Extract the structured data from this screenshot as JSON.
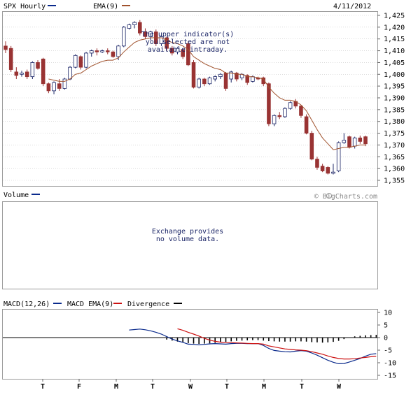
{
  "price_panel": {
    "symbol_label": "SPX Hourly",
    "ema_label": "EMA(9)",
    "date": "4/11/2012",
    "watermark": "© BigCharts.com",
    "notice_lines": [
      "The upper indicator(s)",
      "you selected are not",
      "available intraday."
    ]
  },
  "volume_panel": {
    "label": "Volume",
    "message_lines": [
      "Exchange provides",
      "no volume data."
    ]
  },
  "macd_panel": {
    "macd_label": "MACD(12,26)",
    "signal_label": "MACD EMA(9)",
    "divergence_label": "Divergence"
  },
  "colors": {
    "up_candle": "#ffffff",
    "down_candle": "#993333",
    "candle_outline": "#1a2466",
    "ema": "#a0522d",
    "macd": "#0a2a8c",
    "macd_ema": "#cc1111",
    "divergence": "#000000",
    "grid": "#c8c8c8"
  },
  "chart_data": [
    {
      "type": "candlestick",
      "title": "SPX Hourly",
      "ylim": [
        1355,
        1425
      ],
      "y_ticks": [
        1355,
        1360,
        1365,
        1370,
        1375,
        1380,
        1385,
        1390,
        1395,
        1400,
        1405,
        1410,
        1415,
        1420,
        1425
      ],
      "grid": true,
      "candles": [
        {
          "o": 1412.0,
          "h": 1414.0,
          "l": 1409.0,
          "c": 1410.5
        },
        {
          "o": 1411.0,
          "h": 1412.0,
          "l": 1401.0,
          "c": 1402.0
        },
        {
          "o": 1401.0,
          "h": 1403.0,
          "l": 1398.0,
          "c": 1399.5
        },
        {
          "o": 1400.0,
          "h": 1401.5,
          "l": 1399.0,
          "c": 1400.5
        },
        {
          "o": 1401.0,
          "h": 1402.0,
          "l": 1398.0,
          "c": 1399.0
        },
        {
          "o": 1399.0,
          "h": 1405.5,
          "l": 1398.0,
          "c": 1405.0
        },
        {
          "o": 1405.0,
          "h": 1406.0,
          "l": 1402.0,
          "c": 1402.5
        },
        {
          "o": 1406.5,
          "h": 1407.0,
          "l": 1395.0,
          "c": 1396.0
        },
        {
          "o": 1396.0,
          "h": 1396.5,
          "l": 1392.0,
          "c": 1393.0
        },
        {
          "o": 1393.0,
          "h": 1397.0,
          "l": 1391.5,
          "c": 1396.5
        },
        {
          "o": 1396.0,
          "h": 1398.0,
          "l": 1393.0,
          "c": 1394.0
        },
        {
          "o": 1394.0,
          "h": 1398.5,
          "l": 1393.5,
          "c": 1398.0
        },
        {
          "o": 1398.0,
          "h": 1403.5,
          "l": 1397.5,
          "c": 1403.0
        },
        {
          "o": 1403.0,
          "h": 1408.5,
          "l": 1402.5,
          "c": 1408.0
        },
        {
          "o": 1407.5,
          "h": 1408.0,
          "l": 1402.0,
          "c": 1403.0
        },
        {
          "o": 1403.0,
          "h": 1409.5,
          "l": 1402.5,
          "c": 1409.0
        },
        {
          "o": 1409.0,
          "h": 1410.5,
          "l": 1407.5,
          "c": 1410.0
        },
        {
          "o": 1410.0,
          "h": 1411.0,
          "l": 1408.0,
          "c": 1409.5
        },
        {
          "o": 1409.5,
          "h": 1410.5,
          "l": 1409.0,
          "c": 1410.0
        },
        {
          "o": 1410.0,
          "h": 1411.0,
          "l": 1408.5,
          "c": 1409.5
        },
        {
          "o": 1409.5,
          "h": 1410.0,
          "l": 1407.0,
          "c": 1407.5
        },
        {
          "o": 1407.5,
          "h": 1412.5,
          "l": 1406.0,
          "c": 1412.0
        },
        {
          "o": 1412.0,
          "h": 1420.5,
          "l": 1411.5,
          "c": 1420.0
        },
        {
          "o": 1419.5,
          "h": 1421.5,
          "l": 1419.0,
          "c": 1421.0
        },
        {
          "o": 1421.0,
          "h": 1422.5,
          "l": 1419.5,
          "c": 1422.0
        },
        {
          "o": 1422.0,
          "h": 1423.0,
          "l": 1416.5,
          "c": 1417.5
        },
        {
          "o": 1418.0,
          "h": 1419.5,
          "l": 1415.0,
          "c": 1416.0
        },
        {
          "o": 1416.0,
          "h": 1418.5,
          "l": 1414.5,
          "c": 1418.0
        },
        {
          "o": 1418.0,
          "h": 1419.0,
          "l": 1412.0,
          "c": 1413.0
        },
        {
          "o": 1413.0,
          "h": 1416.5,
          "l": 1412.0,
          "c": 1416.0
        },
        {
          "o": 1415.5,
          "h": 1416.0,
          "l": 1410.0,
          "c": 1411.0
        },
        {
          "o": 1411.0,
          "h": 1412.0,
          "l": 1408.0,
          "c": 1409.0
        },
        {
          "o": 1409.5,
          "h": 1411.5,
          "l": 1408.5,
          "c": 1411.0
        },
        {
          "o": 1410.5,
          "h": 1411.0,
          "l": 1406.5,
          "c": 1407.5
        },
        {
          "o": 1413.0,
          "h": 1414.0,
          "l": 1403.5,
          "c": 1404.0
        },
        {
          "o": 1405.0,
          "h": 1406.0,
          "l": 1394.0,
          "c": 1394.5
        },
        {
          "o": 1394.5,
          "h": 1398.5,
          "l": 1394.0,
          "c": 1398.0
        },
        {
          "o": 1398.0,
          "h": 1398.5,
          "l": 1395.0,
          "c": 1396.0
        },
        {
          "o": 1396.0,
          "h": 1399.0,
          "l": 1395.5,
          "c": 1398.5
        },
        {
          "o": 1398.0,
          "h": 1399.5,
          "l": 1397.0,
          "c": 1399.0
        },
        {
          "o": 1399.0,
          "h": 1400.5,
          "l": 1398.0,
          "c": 1400.0
        },
        {
          "o": 1400.5,
          "h": 1401.0,
          "l": 1393.0,
          "c": 1394.0
        },
        {
          "o": 1398.0,
          "h": 1401.5,
          "l": 1396.5,
          "c": 1401.0
        },
        {
          "o": 1400.5,
          "h": 1401.0,
          "l": 1397.0,
          "c": 1398.0
        },
        {
          "o": 1398.5,
          "h": 1400.5,
          "l": 1397.5,
          "c": 1400.0
        },
        {
          "o": 1399.5,
          "h": 1400.0,
          "l": 1395.5,
          "c": 1396.5
        },
        {
          "o": 1397.0,
          "h": 1399.5,
          "l": 1396.5,
          "c": 1399.0
        },
        {
          "o": 1398.5,
          "h": 1399.0,
          "l": 1397.5,
          "c": 1398.0
        },
        {
          "o": 1398.5,
          "h": 1399.0,
          "l": 1395.0,
          "c": 1396.0
        },
        {
          "o": 1396.0,
          "h": 1396.5,
          "l": 1378.0,
          "c": 1379.0
        },
        {
          "o": 1379.0,
          "h": 1383.0,
          "l": 1378.0,
          "c": 1382.5
        },
        {
          "o": 1382.5,
          "h": 1384.0,
          "l": 1381.0,
          "c": 1382.0
        },
        {
          "o": 1382.0,
          "h": 1386.0,
          "l": 1381.5,
          "c": 1385.5
        },
        {
          "o": 1385.5,
          "h": 1388.5,
          "l": 1385.0,
          "c": 1388.0
        },
        {
          "o": 1388.5,
          "h": 1389.5,
          "l": 1385.5,
          "c": 1386.5
        },
        {
          "o": 1386.5,
          "h": 1387.0,
          "l": 1381.5,
          "c": 1382.5
        },
        {
          "o": 1382.0,
          "h": 1383.0,
          "l": 1374.5,
          "c": 1375.0
        },
        {
          "o": 1375.0,
          "h": 1376.0,
          "l": 1363.5,
          "c": 1364.0
        },
        {
          "o": 1364.0,
          "h": 1365.0,
          "l": 1359.5,
          "c": 1360.5
        },
        {
          "o": 1361.0,
          "h": 1362.0,
          "l": 1358.5,
          "c": 1359.0
        },
        {
          "o": 1360.5,
          "h": 1361.0,
          "l": 1357.5,
          "c": 1358.0
        },
        {
          "o": 1358.0,
          "h": 1362.0,
          "l": 1357.5,
          "c": 1358.5
        },
        {
          "o": 1359.0,
          "h": 1371.5,
          "l": 1358.5,
          "c": 1371.0
        },
        {
          "o": 1371.0,
          "h": 1375.0,
          "l": 1370.5,
          "c": 1372.0
        },
        {
          "o": 1373.5,
          "h": 1374.0,
          "l": 1368.5,
          "c": 1369.0
        },
        {
          "o": 1369.5,
          "h": 1373.5,
          "l": 1368.5,
          "c": 1373.0
        },
        {
          "o": 1373.0,
          "h": 1374.0,
          "l": 1370.5,
          "c": 1371.5
        },
        {
          "o": 1373.5,
          "h": 1374.0,
          "l": 1369.5,
          "c": 1370.5
        }
      ],
      "series": [
        {
          "name": "EMA(9)",
          "values": [
            null,
            null,
            null,
            null,
            null,
            null,
            null,
            null,
            1398.0,
            1397.5,
            1397.0,
            1397.0,
            1398.0,
            1400.0,
            1400.5,
            1402.0,
            1403.5,
            1404.5,
            1405.5,
            1406.0,
            1406.0,
            1407.0,
            1409.5,
            1411.5,
            1413.5,
            1414.5,
            1415.0,
            1415.5,
            1415.5,
            1415.5,
            1414.5,
            1413.5,
            1413.0,
            1412.0,
            1410.5,
            1407.5,
            1406.0,
            1404.5,
            1403.5,
            1402.5,
            1402.0,
            1400.5,
            1400.5,
            1400.0,
            1400.0,
            1399.0,
            1399.0,
            1398.5,
            1398.0,
            1394.5,
            1392.0,
            1390.0,
            1389.0,
            1389.0,
            1388.5,
            1387.0,
            1384.5,
            1380.5,
            1376.5,
            1373.0,
            1370.5,
            1368.0,
            1368.5,
            1369.0,
            1369.0,
            1369.5,
            1370.0,
            1370.0
          ]
        }
      ]
    },
    {
      "type": "macd",
      "ylim": [
        -15,
        10
      ],
      "y_ticks": [
        10,
        5,
        0,
        -5,
        -10,
        -15
      ],
      "series": [
        {
          "name": "MACD(12,26)",
          "values": [
            null,
            null,
            null,
            null,
            null,
            null,
            null,
            null,
            null,
            null,
            null,
            null,
            null,
            null,
            null,
            null,
            null,
            null,
            null,
            null,
            null,
            null,
            null,
            3.0,
            3.2,
            3.4,
            3.1,
            2.7,
            2.1,
            1.4,
            0.4,
            -0.6,
            -1.3,
            -1.9,
            -2.6,
            -2.7,
            -2.9,
            -2.7,
            -2.5,
            -2.4,
            -2.5,
            -2.6,
            -2.4,
            -2.3,
            -2.3,
            -2.4,
            -2.4,
            -2.4,
            -3.1,
            -4.3,
            -5.1,
            -5.4,
            -5.6,
            -5.7,
            -5.4,
            -5.2,
            -5.4,
            -6.1,
            -7.0,
            -8.0,
            -9.0,
            -9.8,
            -10.4,
            -10.3,
            -9.7,
            -9.0,
            -8.3,
            -7.4,
            -6.6,
            -6.4
          ]
        },
        {
          "name": "MACD EMA(9)",
          "values": [
            null,
            null,
            null,
            null,
            null,
            null,
            null,
            null,
            null,
            null,
            null,
            null,
            null,
            null,
            null,
            null,
            null,
            null,
            null,
            null,
            null,
            null,
            null,
            null,
            null,
            null,
            null,
            null,
            null,
            null,
            null,
            null,
            3.5,
            2.9,
            2.1,
            1.4,
            0.6,
            -0.3,
            -1.0,
            -1.5,
            -1.8,
            -2.0,
            -2.0,
            -2.1,
            -2.2,
            -2.3,
            -2.4,
            -2.4,
            -2.6,
            -3.3,
            -3.7,
            -4.1,
            -4.5,
            -4.7,
            -4.9,
            -5.0,
            -5.2,
            -5.6,
            -6.1,
            -6.6,
            -7.3,
            -7.9,
            -8.3,
            -8.5,
            -8.5,
            -8.4,
            -8.1,
            -7.9,
            -7.6,
            -7.4
          ]
        },
        {
          "name": "Divergence",
          "values": [
            null,
            null,
            null,
            null,
            null,
            null,
            null,
            null,
            null,
            null,
            null,
            null,
            null,
            null,
            null,
            null,
            null,
            null,
            null,
            null,
            null,
            null,
            null,
            null,
            null,
            null,
            null,
            null,
            null,
            null,
            -0.8,
            -1.2,
            -1.6,
            -1.9,
            -2.2,
            -2.4,
            -2.5,
            -2.4,
            -2.3,
            -2.1,
            -1.9,
            -1.7,
            -1.5,
            -1.3,
            -1.2,
            -1.1,
            -1.0,
            -1.0,
            -1.2,
            -1.4,
            -1.5,
            -1.6,
            -1.6,
            -1.6,
            -1.5,
            -1.5,
            -1.6,
            -1.8,
            -1.9,
            -2.0,
            -1.9,
            -1.7,
            -1.3,
            -0.6,
            0.1,
            0.5,
            0.7,
            0.9,
            1.0,
            1.1
          ]
        }
      ]
    }
  ],
  "x_axis": {
    "labels": [
      "T",
      "F",
      "M",
      "T",
      "W",
      "T",
      "M",
      "T",
      "W"
    ]
  }
}
